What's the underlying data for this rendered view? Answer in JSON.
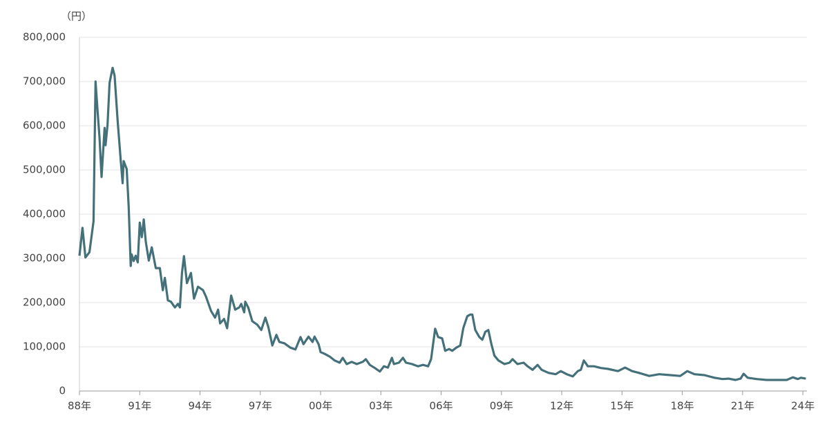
{
  "chart_data": {
    "type": "line",
    "unit_label": "（円）",
    "x": [
      1988.0,
      1988.15,
      1988.3,
      1988.5,
      1988.7,
      1988.8,
      1988.9,
      1989.0,
      1989.1,
      1989.25,
      1989.3,
      1989.4,
      1989.5,
      1989.65,
      1989.75,
      1989.9,
      1990.05,
      1990.15,
      1990.2,
      1990.35,
      1990.45,
      1990.55,
      1990.6,
      1990.7,
      1990.8,
      1990.9,
      1991.0,
      1991.1,
      1991.2,
      1991.3,
      1991.45,
      1991.6,
      1991.8,
      1992.0,
      1992.15,
      1992.25,
      1992.4,
      1992.55,
      1992.75,
      1992.9,
      1993.0,
      1993.1,
      1993.2,
      1993.35,
      1993.55,
      1993.7,
      1993.9,
      1994.15,
      1994.3,
      1994.55,
      1994.75,
      1994.9,
      1995.0,
      1995.2,
      1995.35,
      1995.55,
      1995.75,
      1995.95,
      1996.05,
      1996.2,
      1996.25,
      1996.4,
      1996.6,
      1996.85,
      1997.05,
      1997.25,
      1997.4,
      1997.6,
      1997.8,
      1997.95,
      1998.2,
      1998.5,
      1998.75,
      1999.0,
      1999.15,
      1999.4,
      1999.6,
      1999.7,
      1999.9,
      2000.0,
      2000.2,
      2000.45,
      2000.7,
      2000.95,
      2001.1,
      2001.3,
      2001.55,
      2001.8,
      2002.1,
      2002.25,
      2002.45,
      2002.7,
      2002.95,
      2003.15,
      2003.35,
      2003.55,
      2003.65,
      2003.9,
      2004.1,
      2004.25,
      2004.55,
      2004.85,
      2005.1,
      2005.35,
      2005.5,
      2005.7,
      2005.85,
      2006.05,
      2006.2,
      2006.4,
      2006.55,
      2006.75,
      2006.95,
      2007.1,
      2007.3,
      2007.45,
      2007.55,
      2007.7,
      2007.9,
      2008.05,
      2008.2,
      2008.35,
      2008.5,
      2008.65,
      2008.85,
      2009.15,
      2009.4,
      2009.55,
      2009.8,
      2010.1,
      2010.3,
      2010.55,
      2010.8,
      2011.0,
      2011.35,
      2011.7,
      2011.95,
      2012.25,
      2012.55,
      2012.8,
      2012.95,
      2013.1,
      2013.3,
      2013.6,
      2013.95,
      2014.3,
      2014.8,
      2015.15,
      2015.5,
      2015.85,
      2016.35,
      2016.85,
      2017.4,
      2017.9,
      2018.25,
      2018.6,
      2019.1,
      2019.6,
      2020.0,
      2020.3,
      2020.65,
      2020.9,
      2021.05,
      2021.25,
      2021.7,
      2022.2,
      2022.7,
      2023.2,
      2023.5,
      2023.75,
      2023.9,
      2024.15
    ],
    "series": [
      {
        "color": "#44707a",
        "values": [
          306000,
          369000,
          302000,
          314000,
          384000,
          700000,
          634000,
          572000,
          484000,
          595000,
          556000,
          603000,
          697000,
          731000,
          713000,
          611000,
          525000,
          470000,
          520000,
          502000,
          416000,
          283000,
          309000,
          294000,
          306000,
          291000,
          381000,
          348000,
          388000,
          338000,
          295000,
          325000,
          278000,
          278000,
          228000,
          256000,
          205000,
          202000,
          189000,
          197000,
          189000,
          267000,
          305000,
          244000,
          267000,
          209000,
          236000,
          228000,
          213000,
          181000,
          166000,
          184000,
          153000,
          163000,
          142000,
          216000,
          184000,
          189000,
          197000,
          178000,
          202000,
          189000,
          158000,
          150000,
          138000,
          166000,
          145000,
          103000,
          127000,
          111000,
          108000,
          98000,
          94000,
          122000,
          106000,
          123000,
          111000,
          123000,
          106000,
          88000,
          84000,
          78000,
          69000,
          64000,
          75000,
          61000,
          66000,
          61000,
          66000,
          72000,
          59000,
          52000,
          44000,
          56000,
          53000,
          75000,
          61000,
          64000,
          75000,
          64000,
          61000,
          56000,
          59000,
          56000,
          72000,
          141000,
          122000,
          119000,
          91000,
          95000,
          91000,
          98000,
          103000,
          142000,
          169000,
          173000,
          173000,
          138000,
          122000,
          116000,
          134000,
          138000,
          106000,
          80000,
          69000,
          61000,
          64000,
          72000,
          61000,
          64000,
          56000,
          48000,
          59000,
          48000,
          41000,
          38000,
          45000,
          38000,
          33000,
          45000,
          48000,
          69000,
          56000,
          56000,
          52000,
          50000,
          45000,
          53000,
          45000,
          41000,
          34000,
          38000,
          36000,
          34000,
          45000,
          38000,
          36000,
          30000,
          27000,
          28000,
          25000,
          28000,
          39000,
          30000,
          27000,
          25000,
          25000,
          25000,
          31000,
          27000,
          30000,
          28000
        ]
      }
    ],
    "xlim": [
      1988,
      2024.2
    ],
    "xticks": [
      {
        "value": 1988,
        "label": "88年"
      },
      {
        "value": 1991,
        "label": "91年"
      },
      {
        "value": 1994,
        "label": "94年"
      },
      {
        "value": 1997,
        "label": "97年"
      },
      {
        "value": 2000,
        "label": "00年"
      },
      {
        "value": 2003,
        "label": "03年"
      },
      {
        "value": 2006,
        "label": "06年"
      },
      {
        "value": 2009,
        "label": "09年"
      },
      {
        "value": 2012,
        "label": "12年"
      },
      {
        "value": 2015,
        "label": "15年"
      },
      {
        "value": 2018,
        "label": "18年"
      },
      {
        "value": 2021,
        "label": "21年"
      },
      {
        "value": 2024,
        "label": "24年"
      }
    ],
    "ylim": [
      0,
      800000
    ],
    "yticks": [
      0,
      {
        "value": 100000,
        "label": "100,000"
      },
      {
        "value": 200000,
        "label": "200,000"
      },
      {
        "value": 300000,
        "label": "300,000"
      },
      {
        "value": 400000,
        "label": "400,000"
      },
      {
        "value": 500000,
        "label": "500,000"
      },
      {
        "value": 600000,
        "label": "600,000"
      },
      {
        "value": 700000,
        "label": "700,000"
      },
      {
        "value": 800000,
        "label": "800,000"
      }
    ],
    "grid": true
  }
}
